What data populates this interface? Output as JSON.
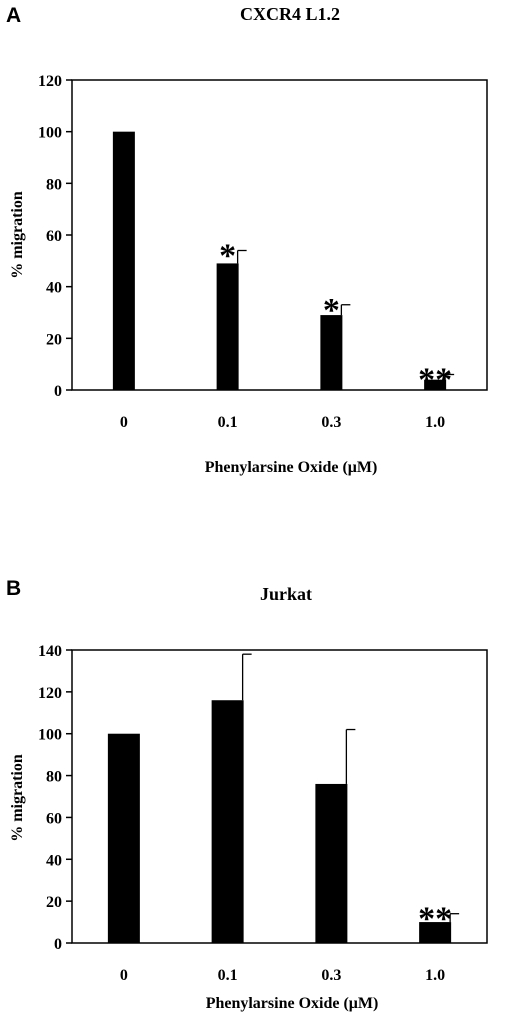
{
  "chart_data": [
    {
      "panel_label": "A",
      "type": "bar",
      "title": "CXCR4 L1.2",
      "xlabel": "Phenylarsine Oxide (μM)",
      "ylabel": "% migration",
      "ylim": [
        0,
        120
      ],
      "yticks": [
        "0",
        "20",
        "40",
        "60",
        "80",
        "100",
        "120"
      ],
      "categories": [
        "0",
        "0.1",
        "0.3",
        "1.0"
      ],
      "values": [
        100,
        49,
        29,
        4
      ],
      "errors": [
        0,
        5,
        4,
        2
      ],
      "annotations": [
        "",
        "*",
        "*",
        "**"
      ],
      "grid": false,
      "bar_color": "#000000"
    },
    {
      "panel_label": "B",
      "type": "bar",
      "title": "Jurkat",
      "xlabel": "Phenylarsine Oxide (μM)",
      "ylabel": "% migration",
      "ylim": [
        0,
        140
      ],
      "yticks": [
        "0",
        "20",
        "40",
        "60",
        "80",
        "100",
        "120",
        "140"
      ],
      "categories": [
        "0",
        "0.1",
        "0.3",
        "1.0"
      ],
      "values": [
        100,
        116,
        76,
        10
      ],
      "errors": [
        0,
        22,
        26,
        4
      ],
      "annotations": [
        "",
        "",
        "",
        "**"
      ],
      "grid": false,
      "bar_color": "#000000"
    }
  ]
}
